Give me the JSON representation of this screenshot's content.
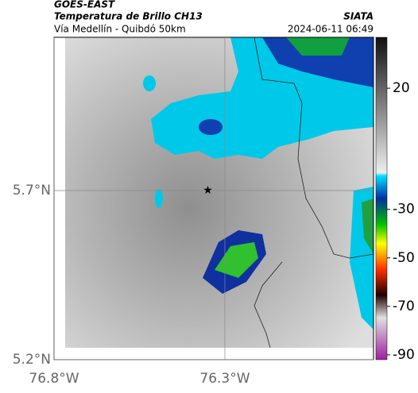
{
  "header": {
    "source": "GOES-EAST",
    "title": "Temperatura de Brillo CH13",
    "subtitle": "Vía Medellín - Quibdó 50km",
    "org": "SIATA",
    "datetime": "2024-06-11 06:49"
  },
  "map": {
    "lon_range": [
      -76.8,
      -75.865
    ],
    "lat_range": [
      5.2,
      6.153
    ],
    "lon_ticks": [
      {
        "value": -76.8,
        "label": "76.8°W"
      },
      {
        "value": -76.3,
        "label": "76.3°W"
      }
    ],
    "lat_ticks": [
      {
        "value": 5.7,
        "label": "5.7°N"
      },
      {
        "value": 5.2,
        "label": "5.2°N"
      }
    ],
    "marker": {
      "lon": -76.35,
      "lat": 5.7
    }
  },
  "colorbar": {
    "range": [
      -92,
      41
    ],
    "ticks": [
      20,
      -30,
      -50,
      -70,
      -90
    ]
  }
}
